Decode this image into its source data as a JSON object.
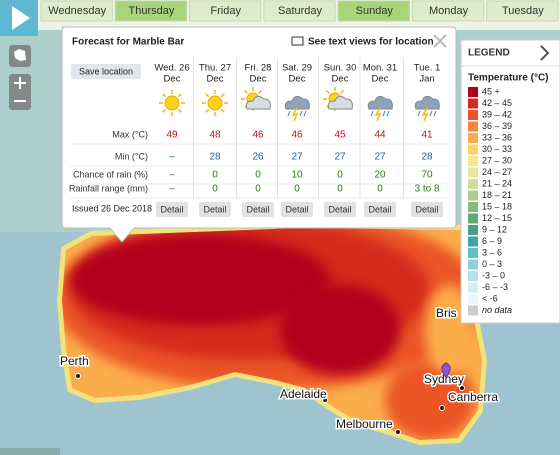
{
  "tabs": {
    "days": [
      "Wednesday",
      "Thursday",
      "Friday",
      "Saturday",
      "Sunday",
      "Monday",
      "Tuesday"
    ],
    "highlighted": [
      1,
      4
    ]
  },
  "popup": {
    "title": "Forecast for Marble Bar",
    "text_view_link": "See text views for location",
    "save_button": "Save location",
    "issued": "Issued 26 Dec 2018",
    "row_labels": [
      "Max (°C)",
      "Min (°C)",
      "Chance of rain (%)",
      "Rainfall range (mm)"
    ],
    "days": [
      {
        "label": [
          "Wed. 26",
          "Dec"
        ],
        "max": "49",
        "min": "–",
        "rain_chance": "–",
        "rain_range": "–",
        "detail": "Detail"
      },
      {
        "label": [
          "Thu. 27",
          "Dec"
        ],
        "max": "48",
        "min": "28",
        "rain_chance": "0",
        "rain_range": "0",
        "detail": "Detail"
      },
      {
        "label": [
          "Fri. 28",
          "Dec"
        ],
        "max": "46",
        "min": "26",
        "rain_chance": "0",
        "rain_range": "0",
        "detail": "Detail"
      },
      {
        "label": [
          "Sat. 29",
          "Dec"
        ],
        "max": "46",
        "min": "27",
        "rain_chance": "10",
        "rain_range": "0",
        "detail": "Detail"
      },
      {
        "label": [
          "Sun. 30",
          "Dec"
        ],
        "max": "45",
        "min": "27",
        "rain_chance": "0",
        "rain_range": "0",
        "detail": "Detail"
      },
      {
        "label": [
          "Mon. 31",
          "Dec"
        ],
        "max": "44",
        "min": "27",
        "rain_chance": "20",
        "rain_range": "0",
        "detail": "Detail"
      },
      {
        "label": [
          "Tue. 1",
          "Jan"
        ],
        "max": "41",
        "min": "28",
        "rain_chance": "70",
        "rain_range": "3 to 8",
        "detail": "Detail"
      }
    ]
  },
  "legend": {
    "title": "LEGEND",
    "subtitle": "Temperature (°C)",
    "items": [
      {
        "label": "45 +",
        "color": "#b0001c"
      },
      {
        "label": "42 – 45",
        "color": "#d42a1e"
      },
      {
        "label": "39 – 42",
        "color": "#ec5428"
      },
      {
        "label": "36 – 39",
        "color": "#f5853a"
      },
      {
        "label": "33 – 36",
        "color": "#fbad4c"
      },
      {
        "label": "30 – 33",
        "color": "#fdd266"
      },
      {
        "label": "27 – 30",
        "color": "#f6e68c"
      },
      {
        "label": "24 – 27",
        "color": "#e6e89c"
      },
      {
        "label": "21 – 24",
        "color": "#cbe09a"
      },
      {
        "label": "18 – 21",
        "color": "#a6cf8c"
      },
      {
        "label": "15 – 18",
        "color": "#83be7c"
      },
      {
        "label": "12 – 15",
        "color": "#63a96f"
      },
      {
        "label": "9 – 12",
        "color": "#4d9c8b"
      },
      {
        "label": "6 – 9",
        "color": "#3aa5a8"
      },
      {
        "label": "3 – 6",
        "color": "#5cc0c8"
      },
      {
        "label": "0 – 3",
        "color": "#89d3dd"
      },
      {
        "label": "-3 – 0",
        "color": "#b2e3ea"
      },
      {
        "label": "-6 – -3",
        "color": "#d2eef2"
      },
      {
        "label": "< -6",
        "color": "#ebf7f8"
      },
      {
        "label": "no data",
        "color": "#cccccc"
      }
    ]
  },
  "map": {
    "places": [
      "Perth",
      "Adelaide",
      "Melbourne",
      "Sydney",
      "Canberra",
      "Bris"
    ]
  }
}
